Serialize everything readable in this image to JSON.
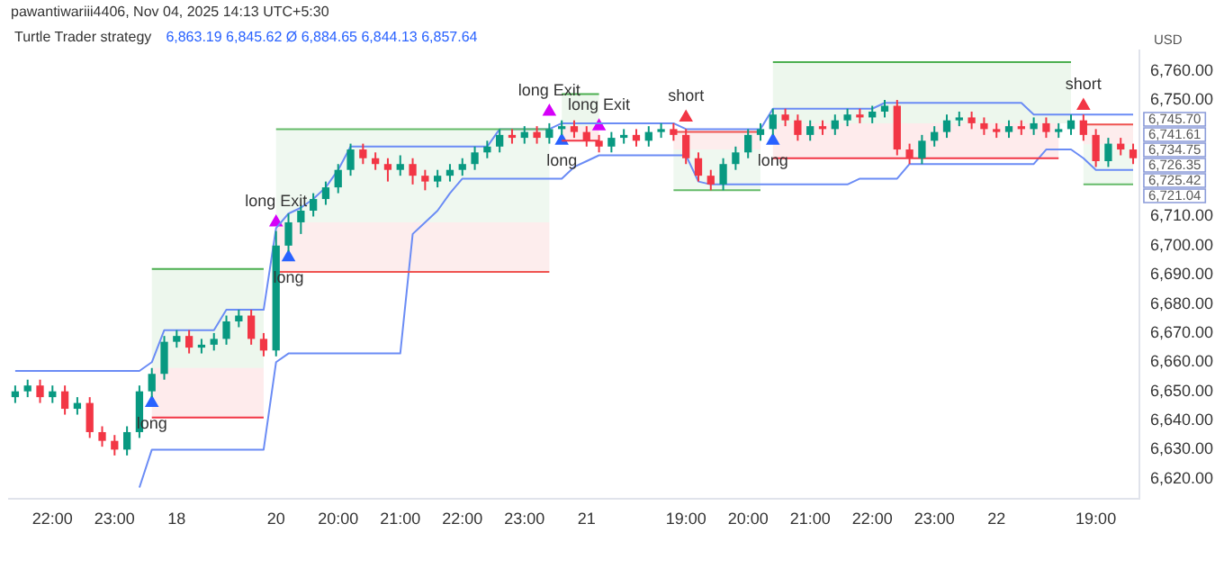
{
  "chart_data": {
    "type": "candlestick",
    "title": "Turtle Trader strategy",
    "subtitle": "6,863.19 6,845.62 Ø 6,884.65 6,844.13 6,857.64",
    "ylabel": "USD",
    "annotations": [
      "pawantiwariii4406, Nov 04, 2025 14:13 UTC+5:30",
      "6,745.70",
      "6,741.61",
      "6,734.75",
      "6,726.35",
      "6,725.42",
      "6,721.04"
    ],
    "categories": [
      null,
      null,
      null,
      "22:00",
      null,
      null,
      null,
      null,
      "23:00",
      null,
      null,
      null,
      null,
      "18",
      null,
      null,
      null,
      null,
      null,
      null,
      null,
      "20",
      null,
      null,
      null,
      null,
      "20:00",
      null,
      null,
      null,
      null,
      "21:00",
      null,
      null,
      null,
      null,
      "22:00",
      null,
      null,
      null,
      null,
      "23:00",
      null,
      null,
      null,
      null,
      "21",
      null,
      null,
      null,
      null,
      null,
      null,
      null,
      "19:00",
      null,
      null,
      null,
      null,
      "20:00",
      null,
      null,
      null,
      null,
      "21:00",
      null,
      null,
      null,
      null,
      "22:00",
      null,
      null,
      null,
      null,
      "23:00",
      null,
      null,
      null,
      null,
      "22",
      null,
      null,
      null,
      null,
      null,
      null,
      null,
      "19:00",
      null,
      null,
      null
    ],
    "ohlc": [
      [
        6648,
        6652,
        6646,
        6650
      ],
      [
        6650,
        6654,
        6648,
        6652
      ],
      [
        6652,
        6654,
        6646,
        6648
      ],
      [
        6648,
        6652,
        6646,
        6650
      ],
      [
        6650,
        6652,
        6642,
        6644
      ],
      [
        6644,
        6648,
        6642,
        6646
      ],
      [
        6646,
        6648,
        6634,
        6636
      ],
      [
        6636,
        6638,
        6631,
        6633
      ],
      [
        6633,
        6635,
        6628,
        6630
      ],
      [
        6630,
        6638,
        6628,
        6636
      ],
      [
        6636,
        6652,
        6634,
        6650
      ],
      [
        6650,
        6658,
        6648,
        6656
      ],
      [
        6656,
        6669,
        6654,
        6667
      ],
      [
        6667,
        6671,
        6665,
        6669
      ],
      [
        6669,
        6671,
        6663,
        6665
      ],
      [
        6665,
        6668,
        6663,
        6666
      ],
      [
        6666,
        6670,
        6664,
        6668
      ],
      [
        6668,
        6676,
        6666,
        6674
      ],
      [
        6674,
        6678,
        6672,
        6676
      ],
      [
        6676,
        6678,
        6666,
        6668
      ],
      [
        6668,
        6670,
        6662,
        6664
      ],
      [
        6664,
        6705,
        6662,
        6700
      ],
      [
        6700,
        6711,
        6698,
        6708
      ],
      [
        6708,
        6714,
        6704,
        6712
      ],
      [
        6712,
        6718,
        6710,
        6716
      ],
      [
        6716,
        6722,
        6714,
        6720
      ],
      [
        6720,
        6728,
        6718,
        6726
      ],
      [
        6726,
        6735,
        6724,
        6733
      ],
      [
        6733,
        6735,
        6728,
        6730
      ],
      [
        6730,
        6732,
        6726,
        6728
      ],
      [
        6728,
        6730,
        6722,
        6726
      ],
      [
        6726,
        6731,
        6724,
        6728
      ],
      [
        6728,
        6730,
        6721,
        6724
      ],
      [
        6724,
        6726,
        6719,
        6722
      ],
      [
        6722,
        6726,
        6720,
        6724
      ],
      [
        6724,
        6728,
        6722,
        6726
      ],
      [
        6726,
        6730,
        6724,
        6728
      ],
      [
        6728,
        6734,
        6726,
        6732
      ],
      [
        6732,
        6736,
        6730,
        6734
      ],
      [
        6734,
        6740,
        6732,
        6738
      ],
      [
        6738,
        6740,
        6735,
        6737
      ],
      [
        6737,
        6741,
        6735,
        6739
      ],
      [
        6739,
        6741,
        6735,
        6737
      ],
      [
        6737,
        6742,
        6735,
        6740
      ],
      [
        6740,
        6743,
        6738,
        6741
      ],
      [
        6741,
        6743,
        6737,
        6739
      ],
      [
        6739,
        6741,
        6734,
        6736
      ],
      [
        6736,
        6738,
        6732,
        6734
      ],
      [
        6734,
        6739,
        6732,
        6737
      ],
      [
        6737,
        6740,
        6735,
        6738
      ],
      [
        6738,
        6740,
        6734,
        6736
      ],
      [
        6736,
        6741,
        6734,
        6739
      ],
      [
        6739,
        6742,
        6737,
        6740
      ],
      [
        6740,
        6742,
        6736,
        6738
      ],
      [
        6738,
        6740,
        6728,
        6730
      ],
      [
        6730,
        6732,
        6722,
        6724
      ],
      [
        6724,
        6726,
        6719,
        6721
      ],
      [
        6721,
        6730,
        6719,
        6728
      ],
      [
        6728,
        6734,
        6726,
        6732
      ],
      [
        6732,
        6740,
        6730,
        6738
      ],
      [
        6738,
        6742,
        6736,
        6740
      ],
      [
        6740,
        6747,
        6738,
        6745
      ],
      [
        6745,
        6747,
        6741,
        6743
      ],
      [
        6743,
        6745,
        6736,
        6738
      ],
      [
        6738,
        6743,
        6736,
        6741
      ],
      [
        6741,
        6743,
        6738,
        6740
      ],
      [
        6740,
        6745,
        6738,
        6743
      ],
      [
        6743,
        6747,
        6741,
        6745
      ],
      [
        6745,
        6747,
        6742,
        6744
      ],
      [
        6744,
        6748,
        6742,
        6746
      ],
      [
        6746,
        6750,
        6744,
        6748
      ],
      [
        6748,
        6750,
        6731,
        6733
      ],
      [
        6733,
        6735,
        6728,
        6730
      ],
      [
        6730,
        6738,
        6728,
        6736
      ],
      [
        6736,
        6741,
        6734,
        6739
      ],
      [
        6739,
        6745,
        6737,
        6743
      ],
      [
        6743,
        6746,
        6741,
        6744
      ],
      [
        6744,
        6746,
        6740,
        6742
      ],
      [
        6742,
        6744,
        6738,
        6740
      ],
      [
        6740,
        6742,
        6737,
        6739
      ],
      [
        6739,
        6743,
        6737,
        6741
      ],
      [
        6741,
        6743,
        6738,
        6740
      ],
      [
        6740,
        6744,
        6738,
        6742
      ],
      [
        6742,
        6744,
        6737,
        6739
      ],
      [
        6739,
        6742,
        6737,
        6740
      ],
      [
        6740,
        6745,
        6738,
        6743
      ],
      [
        6743,
        6745,
        6736,
        6738
      ],
      [
        6738,
        6740,
        6727,
        6729
      ],
      [
        6729,
        6737,
        6727,
        6735
      ],
      [
        6735,
        6737,
        6731,
        6733
      ],
      [
        6733,
        6735,
        6728,
        6730
      ]
    ],
    "series": [
      {
        "type": "line",
        "color": "#4caf50",
        "values": [
          null,
          null,
          null,
          null,
          null,
          null,
          null,
          null,
          null,
          null,
          null,
          6692,
          6692,
          6692,
          6692,
          6692,
          6692,
          6692,
          6692,
          6692,
          6692,
          null,
          null,
          null,
          null,
          null,
          null,
          null,
          null,
          null,
          null,
          null,
          null,
          null,
          null,
          null,
          null,
          null,
          null,
          null,
          null,
          null,
          null,
          null,
          6752,
          6752,
          6752,
          6752,
          null,
          null,
          null,
          null,
          null,
          null,
          null,
          null,
          null,
          null,
          null,
          null,
          null,
          6763,
          6763,
          6763,
          6763,
          6763,
          6763,
          6763,
          6763,
          6763,
          6763,
          6763,
          6763,
          6763,
          6763,
          6763,
          6763,
          6763,
          6763,
          6763,
          6763,
          6763,
          6763,
          6763,
          6763,
          6763,
          null,
          null,
          null,
          null,
          null
        ],
        "upper": [
          null,
          null,
          null,
          null,
          null,
          null,
          null,
          null,
          null,
          null,
          null,
          6692,
          6692,
          6692,
          6692,
          6692,
          6692,
          6692,
          6692,
          6692,
          6692,
          null,
          null,
          null,
          null,
          null,
          null,
          null,
          null,
          null,
          null,
          null,
          null,
          null,
          null,
          null,
          null,
          null,
          null,
          null,
          null,
          null,
          null,
          null,
          6752,
          6752,
          6752,
          6752,
          null,
          null,
          null,
          null,
          null,
          null,
          null,
          null,
          null,
          null,
          null,
          null,
          null,
          6763,
          6763,
          6763,
          6763,
          6763,
          6763,
          6763,
          6763,
          6763,
          6763,
          6763,
          6763,
          6763,
          6763,
          6763,
          6763,
          6763,
          6763,
          6763,
          6763,
          6763,
          6763,
          6763,
          6763,
          6763,
          null,
          null,
          null,
          null,
          null
        ],
        "lower": [
          null,
          null,
          null,
          null,
          null,
          null,
          null,
          null,
          null,
          null,
          null,
          6658,
          6658,
          6658,
          6658,
          6658,
          6658,
          6658,
          6658,
          6658,
          6658,
          null,
          null,
          null,
          null,
          null,
          null,
          null,
          null,
          null,
          null,
          null,
          null,
          null,
          null,
          null,
          null,
          null,
          null,
          null,
          null,
          null,
          null,
          null,
          6741,
          6741,
          6741,
          6741,
          null,
          null,
          null,
          null,
          null,
          null,
          null,
          null,
          null,
          null,
          null,
          null,
          null,
          6742,
          6742,
          6742,
          6742,
          6742,
          6742,
          6742,
          6742,
          6742,
          6742,
          6742,
          6742,
          6742,
          6742,
          6742,
          6742,
          6742,
          6742,
          6742,
          6742,
          6742,
          6742,
          6742,
          6742,
          6742,
          null,
          null,
          null,
          null,
          null
        ]
      },
      {
        "type": "line",
        "color": "#f23645",
        "values": [
          null,
          null,
          null,
          null,
          null,
          null,
          null,
          null,
          null,
          null,
          null,
          6641,
          6641,
          6641,
          6641,
          6641,
          6641,
          6641,
          6641,
          6641,
          6641,
          null,
          null,
          null,
          null,
          null,
          null,
          null,
          null,
          null,
          null,
          null,
          null,
          null,
          null,
          null,
          null,
          null,
          null,
          null,
          null,
          null,
          null,
          null,
          6736,
          6736,
          6736,
          6736,
          null,
          null,
          null,
          null,
          null,
          null,
          null,
          null,
          null,
          null,
          null,
          null,
          null,
          6730,
          6730,
          6730,
          6730,
          6730,
          6730,
          6730,
          6730,
          6730,
          6730,
          6730,
          6730,
          6730,
          6730,
          6730,
          6730,
          6730,
          6730,
          6730,
          6730,
          6730,
          6730,
          6730,
          6730,
          null,
          null,
          null,
          null,
          null,
          null
        ],
        "upper": [
          null,
          null,
          null,
          null,
          null,
          null,
          null,
          null,
          null,
          null,
          null,
          6658,
          6658,
          6658,
          6658,
          6658,
          6658,
          6658,
          6658,
          6658,
          6658,
          null,
          null,
          null,
          null,
          null,
          null,
          null,
          null,
          null,
          null,
          null,
          null,
          null,
          null,
          null,
          null,
          null,
          null,
          null,
          null,
          null,
          null,
          null,
          6741,
          6741,
          6741,
          6741,
          null,
          null,
          null,
          null,
          null,
          null,
          null,
          null,
          null,
          null,
          null,
          null,
          null,
          6742,
          6742,
          6742,
          6742,
          6742,
          6742,
          6742,
          6742,
          6742,
          6742,
          6742,
          6742,
          6742,
          6742,
          6742,
          6742,
          6742,
          6742,
          6742,
          6742,
          6742,
          6742,
          6742,
          6742,
          null,
          null,
          null,
          null,
          null,
          null
        ],
        "lower": [
          null,
          null,
          null,
          null,
          null,
          null,
          null,
          null,
          null,
          null,
          null,
          6641,
          6641,
          6641,
          6641,
          6641,
          6641,
          6641,
          6641,
          6641,
          6641,
          null,
          null,
          null,
          null,
          null,
          null,
          null,
          null,
          null,
          null,
          null,
          null,
          null,
          null,
          null,
          null,
          null,
          null,
          null,
          null,
          null,
          null,
          null,
          6736,
          6736,
          6736,
          6736,
          null,
          null,
          null,
          null,
          null,
          null,
          null,
          null,
          null,
          null,
          null,
          null,
          null,
          6730,
          6730,
          6730,
          6730,
          6730,
          6730,
          6730,
          6730,
          6730,
          6730,
          6730,
          6730,
          6730,
          6730,
          6730,
          6730,
          6730,
          6730,
          6730,
          6730,
          6730,
          6730,
          6730,
          6730,
          null,
          null,
          null,
          null,
          null,
          null
        ]
      },
      {
        "type": "line",
        "color": "#66bb6a",
        "values": [
          null,
          null,
          null,
          null,
          null,
          null,
          null,
          null,
          null,
          null,
          null,
          null,
          null,
          null,
          null,
          null,
          null,
          null,
          null,
          null,
          null,
          6740,
          6740,
          6740,
          6740,
          6740,
          6740,
          6740,
          6740,
          6740,
          6740,
          6740,
          6740,
          6740,
          6740,
          6740,
          6740,
          6740,
          6740,
          6740,
          6740,
          6740,
          6740,
          6740,
          null,
          null,
          null,
          null,
          null,
          null,
          null,
          null,
          null,
          6719,
          6719,
          6719,
          6719,
          6719,
          6719,
          6719,
          6719,
          null,
          null,
          null,
          null,
          null,
          null,
          null,
          null,
          null,
          null,
          null,
          null,
          null,
          null,
          null,
          null,
          null,
          null,
          null,
          null,
          null,
          null,
          null,
          null,
          null,
          6721.04,
          6721.04,
          6721.04,
          6721.04,
          6721.04
        ],
        "upper": [
          null,
          null,
          null,
          null,
          null,
          null,
          null,
          null,
          null,
          null,
          null,
          null,
          null,
          null,
          null,
          null,
          null,
          null,
          null,
          null,
          null,
          6740,
          6740,
          6740,
          6740,
          6740,
          6740,
          6740,
          6740,
          6740,
          6740,
          6740,
          6740,
          6740,
          6740,
          6740,
          6740,
          6740,
          6740,
          6740,
          6740,
          6740,
          6740,
          6740,
          null,
          null,
          null,
          null,
          null,
          null,
          null,
          null,
          null,
          6733,
          6733,
          6733,
          6733,
          6733,
          6733,
          6733,
          6733,
          null,
          null,
          null,
          null,
          null,
          null,
          null,
          null,
          null,
          null,
          null,
          null,
          null,
          null,
          null,
          null,
          null,
          null,
          null,
          null,
          null,
          null,
          null,
          null,
          null,
          6734.75,
          6734.75,
          6734.75,
          6734.75,
          6734.75
        ],
        "lower": [
          null,
          null,
          null,
          null,
          null,
          null,
          null,
          null,
          null,
          null,
          null,
          null,
          null,
          null,
          null,
          null,
          null,
          null,
          null,
          null,
          null,
          6708,
          6708,
          6708,
          6708,
          6708,
          6708,
          6708,
          6708,
          6708,
          6708,
          6708,
          6708,
          6708,
          6708,
          6708,
          6708,
          6708,
          6708,
          6708,
          6708,
          6708,
          6708,
          6708,
          null,
          null,
          null,
          null,
          null,
          null,
          null,
          null,
          null,
          6719,
          6719,
          6719,
          6719,
          6719,
          6719,
          6719,
          6719,
          null,
          null,
          null,
          null,
          null,
          null,
          null,
          null,
          null,
          null,
          null,
          null,
          null,
          null,
          null,
          null,
          null,
          null,
          null,
          null,
          null,
          null,
          null,
          null,
          null,
          6721.04,
          6721.04,
          6721.04,
          6721.04,
          6721.04
        ]
      },
      {
        "type": "line",
        "color": "#ef5350",
        "values": [
          null,
          null,
          null,
          null,
          null,
          null,
          null,
          null,
          null,
          null,
          null,
          null,
          null,
          null,
          null,
          null,
          null,
          null,
          null,
          null,
          null,
          6691,
          6691,
          6691,
          6691,
          6691,
          6691,
          6691,
          6691,
          6691,
          6691,
          6691,
          6691,
          6691,
          6691,
          6691,
          6691,
          6691,
          6691,
          6691,
          6691,
          6691,
          6691,
          6691,
          null,
          null,
          null,
          null,
          null,
          null,
          null,
          null,
          null,
          6739,
          6739,
          6739,
          6739,
          6739,
          6739,
          6739,
          6739,
          null,
          null,
          null,
          null,
          null,
          null,
          null,
          null,
          null,
          null,
          null,
          null,
          null,
          null,
          null,
          null,
          null,
          null,
          null,
          null,
          null,
          null,
          null,
          null,
          null,
          6741.61,
          6741.61,
          6741.61,
          6741.61,
          6741.61
        ],
        "upper": [
          null,
          null,
          null,
          null,
          null,
          null,
          null,
          null,
          null,
          null,
          null,
          null,
          null,
          null,
          null,
          null,
          null,
          null,
          null,
          null,
          null,
          6708,
          6708,
          6708,
          6708,
          6708,
          6708,
          6708,
          6708,
          6708,
          6708,
          6708,
          6708,
          6708,
          6708,
          6708,
          6708,
          6708,
          6708,
          6708,
          6708,
          6708,
          6708,
          6708,
          null,
          null,
          null,
          null,
          null,
          null,
          null,
          null,
          null,
          6739,
          6739,
          6739,
          6739,
          6739,
          6739,
          6739,
          6739,
          null,
          null,
          null,
          null,
          null,
          null,
          null,
          null,
          null,
          null,
          null,
          null,
          null,
          null,
          null,
          null,
          null,
          null,
          null,
          null,
          null,
          null,
          null,
          null,
          null,
          6741.61,
          6741.61,
          6741.61,
          6741.61,
          6741.61
        ],
        "lower": [
          null,
          null,
          null,
          null,
          null,
          null,
          null,
          null,
          null,
          null,
          null,
          null,
          null,
          null,
          null,
          null,
          null,
          null,
          null,
          null,
          null,
          6691,
          6691,
          6691,
          6691,
          6691,
          6691,
          6691,
          6691,
          6691,
          6691,
          6691,
          6691,
          6691,
          6691,
          6691,
          6691,
          6691,
          6691,
          6691,
          6691,
          6691,
          6691,
          6691,
          null,
          null,
          null,
          null,
          null,
          null,
          null,
          null,
          null,
          6733,
          6733,
          6733,
          6733,
          6733,
          6733,
          6733,
          6733,
          null,
          null,
          null,
          null,
          null,
          null,
          null,
          null,
          null,
          null,
          null,
          null,
          null,
          null,
          null,
          null,
          null,
          null,
          null,
          null,
          null,
          null,
          null,
          null,
          null,
          6734.75,
          6734.75,
          6734.75,
          6734.75,
          6734.75
        ]
      },
      {
        "type": "line",
        "color": "#6b8cf5",
        "values": [
          6657,
          6657,
          6657,
          6657,
          6657,
          6657,
          6657,
          6657,
          6657,
          6657,
          6657,
          6660,
          6671,
          6671,
          6671,
          6671,
          6671,
          6678,
          6678,
          6678,
          6678,
          6706,
          6711,
          6713,
          6716,
          6720,
          6726,
          6734,
          6734,
          6734,
          6734,
          6734,
          6734,
          6734,
          6734,
          6734,
          6734,
          6734,
          6734,
          6740,
          6740,
          6740,
          6740,
          6740,
          6742,
          6742,
          6742,
          6742,
          6742,
          6742,
          6742,
          6742,
          6742,
          6742,
          6740,
          6740,
          6740,
          6740,
          6740,
          6740,
          6740,
          6747,
          6747,
          6747,
          6747,
          6747,
          6747,
          6747,
          6747,
          6747,
          6749,
          6749,
          6749,
          6749,
          6749,
          6749,
          6749,
          6749,
          6749,
          6749,
          6749,
          6749,
          6745,
          6745,
          6745,
          6745,
          6745,
          6745,
          6745,
          6745,
          6745
        ]
      },
      {
        "type": "line",
        "color": "#6b8cf5",
        "values": [
          null,
          null,
          null,
          null,
          null,
          null,
          null,
          null,
          null,
          null,
          6617,
          6630,
          6630,
          6630,
          6630,
          6630,
          6630,
          6630,
          6630,
          6630,
          6630,
          6660,
          6663,
          6663,
          6663,
          6663,
          6663,
          6663,
          6663,
          6663,
          6663,
          6663,
          6704,
          6708,
          6712,
          6718,
          6723,
          6723,
          6723,
          6723,
          6723,
          6723,
          6723,
          6723,
          6723,
          6727,
          6729,
          6731,
          6731,
          6731,
          6731,
          6731,
          6731,
          6731,
          6731,
          6722,
          6721,
          6721,
          6721,
          6721,
          6721,
          6721,
          6721,
          6721,
          6721,
          6721,
          6721,
          6721,
          6723,
          6723,
          6723,
          6723,
          6728,
          6728,
          6728,
          6728,
          6728,
          6728,
          6728,
          6728,
          6728,
          6728,
          6728,
          6733,
          6733,
          6733,
          6730,
          6726,
          6726,
          6726,
          6726
        ]
      },
      {
        "type": "scatter",
        "name": "long",
        "color": "#2962ff",
        "marker": "triangle",
        "values": [
          null,
          null,
          null,
          null,
          null,
          null,
          null,
          null,
          null,
          null,
          null,
          6646,
          null,
          null,
          null,
          null,
          null,
          null,
          null,
          null,
          null,
          null,
          6696,
          null,
          null,
          null,
          null,
          null,
          null,
          null,
          null,
          null,
          null,
          null,
          null,
          null,
          null,
          null,
          null,
          null,
          null,
          null,
          null,
          null,
          6736,
          null,
          null,
          null,
          null,
          null,
          null,
          null,
          null,
          null,
          null,
          null,
          null,
          null,
          null,
          null,
          null,
          6736,
          null,
          null,
          null,
          null,
          null,
          null,
          null,
          null,
          null,
          null,
          null,
          null,
          null,
          null,
          null,
          null,
          null,
          null,
          null,
          null,
          null,
          null,
          null,
          null,
          null,
          null,
          null,
          null,
          null
        ]
      },
      {
        "type": "scatter",
        "name": "long Exit",
        "color": "#d500f9",
        "marker": "triangle",
        "values": [
          null,
          null,
          null,
          null,
          null,
          null,
          null,
          null,
          null,
          null,
          null,
          null,
          null,
          null,
          null,
          null,
          null,
          null,
          null,
          null,
          null,
          6708,
          null,
          null,
          null,
          null,
          null,
          null,
          null,
          null,
          null,
          null,
          null,
          null,
          null,
          null,
          null,
          null,
          null,
          null,
          null,
          null,
          null,
          6746,
          null,
          null,
          null,
          6741,
          null,
          null,
          null,
          null,
          null,
          null,
          null,
          null,
          null,
          null,
          null,
          null,
          null,
          null,
          null,
          null,
          null,
          null,
          null,
          null,
          null,
          null,
          null,
          null,
          null,
          null,
          null,
          null,
          null,
          null,
          null,
          null,
          null,
          null,
          null,
          null,
          null,
          null,
          null,
          null,
          null,
          null,
          null
        ]
      },
      {
        "type": "scatter",
        "name": "short",
        "color": "#f23645",
        "marker": "triangle",
        "values": [
          null,
          null,
          null,
          null,
          null,
          null,
          null,
          null,
          null,
          null,
          null,
          null,
          null,
          null,
          null,
          null,
          null,
          null,
          null,
          null,
          null,
          null,
          null,
          null,
          null,
          null,
          null,
          null,
          null,
          null,
          null,
          null,
          null,
          null,
          null,
          null,
          null,
          null,
          null,
          null,
          null,
          null,
          null,
          null,
          null,
          null,
          null,
          null,
          null,
          null,
          null,
          null,
          null,
          null,
          6744,
          null,
          null,
          null,
          null,
          null,
          null,
          null,
          null,
          null,
          null,
          null,
          null,
          null,
          null,
          null,
          null,
          null,
          null,
          null,
          null,
          null,
          null,
          null,
          null,
          null,
          null,
          null,
          null,
          null,
          null,
          null,
          6748,
          null,
          null,
          null,
          null
        ]
      }
    ],
    "ylim": [
      6613,
      6767
    ],
    "yticks": [
      {
        "value": 6620,
        "label": "6,620.00"
      },
      {
        "value": 6630,
        "label": "6,630.00"
      },
      {
        "value": 6640,
        "label": "6,640.00"
      },
      {
        "value": 6650,
        "label": "6,650.00"
      },
      {
        "value": 6660,
        "label": "6,660.00"
      },
      {
        "value": 6670,
        "label": "6,670.00"
      },
      {
        "value": 6680,
        "label": "6,680.00"
      },
      {
        "value": 6690,
        "label": "6,690.00"
      },
      {
        "value": 6700,
        "label": "6,700.00"
      },
      {
        "value": 6710,
        "label": "6,710.00"
      },
      {
        "value": 6750,
        "label": "6,750.00"
      },
      {
        "value": 6760,
        "label": "6,760.00"
      }
    ]
  }
}
